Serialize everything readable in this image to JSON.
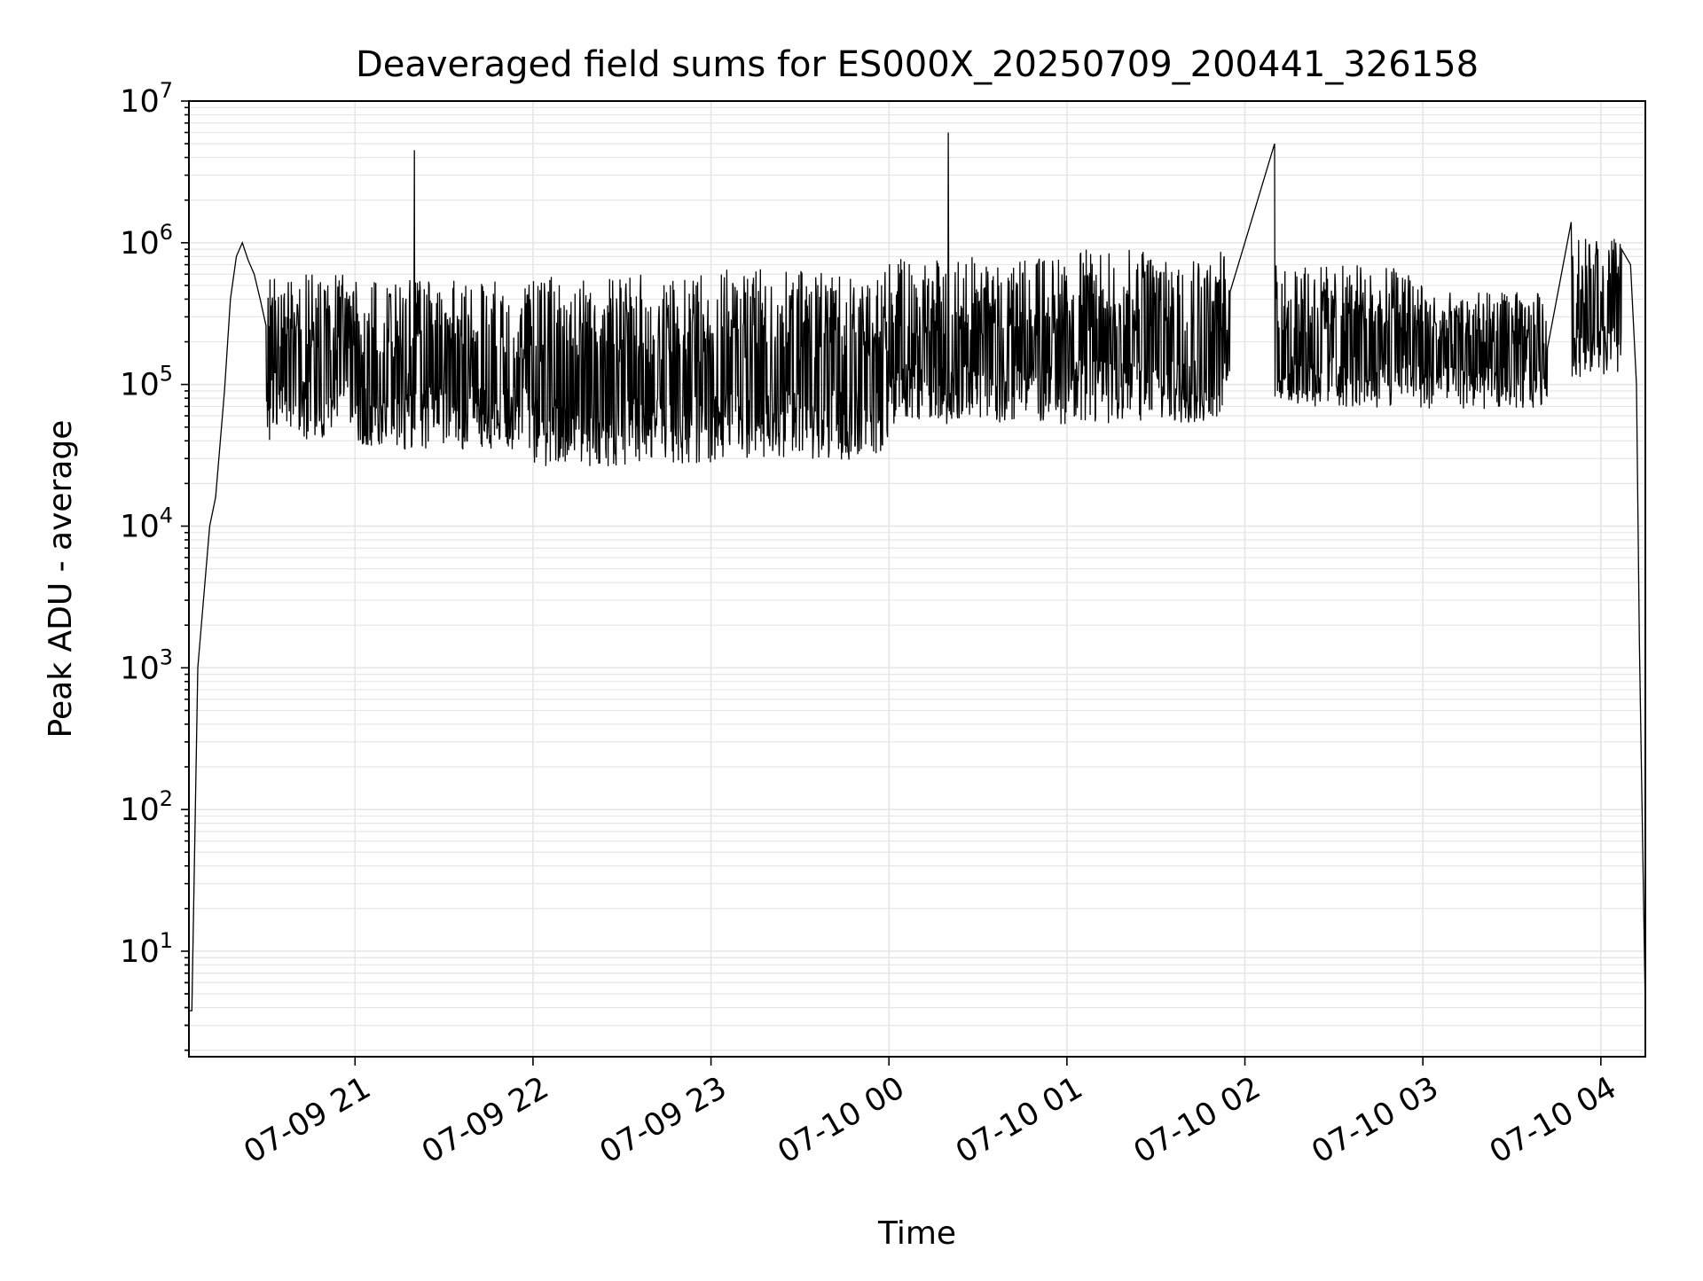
{
  "chart_data": {
    "type": "line",
    "title": "Deaveraged field sums for ES000X_20250709_200441_326158",
    "xlabel": "Time",
    "ylabel": "Peak ADU - average",
    "y_scale": "log",
    "ylim": [
      1.8,
      10000000
    ],
    "xlim": [
      "2025-07-09 20:04",
      "2025-07-10 04:15"
    ],
    "x_tick_labels": [
      "07-09 21",
      "07-09 22",
      "07-09 23",
      "07-10 00",
      "07-10 01",
      "07-10 02",
      "07-10 03",
      "07-10 04"
    ],
    "x_tick_values": [
      "2025-07-09 21:00",
      "2025-07-09 22:00",
      "2025-07-09 23:00",
      "2025-07-10 00:00",
      "2025-07-10 01:00",
      "2025-07-10 02:00",
      "2025-07-10 03:00",
      "2025-07-10 04:00"
    ],
    "y_ticks": [
      {
        "value": 10,
        "base": "10",
        "exp": "1"
      },
      {
        "value": 100,
        "base": "10",
        "exp": "2"
      },
      {
        "value": 1000,
        "base": "10",
        "exp": "3"
      },
      {
        "value": 10000,
        "base": "10",
        "exp": "4"
      },
      {
        "value": 100000,
        "base": "10",
        "exp": "5"
      },
      {
        "value": 1000000,
        "base": "10",
        "exp": "6"
      },
      {
        "value": 10000000,
        "base": "10",
        "exp": "7"
      }
    ],
    "grid": true,
    "line_color": "#000000",
    "grid_color": "#e6e6e6",
    "series": [
      {
        "x": [
          "2025-07-09 20:04",
          "2025-07-09 20:05",
          "2025-07-09 20:07",
          "2025-07-09 20:08",
          "2025-07-09 20:11",
          "2025-07-09 20:13",
          "2025-07-09 20:16",
          "2025-07-09 20:18",
          "2025-07-09 20:20",
          "2025-07-09 20:22",
          "2025-07-09 20:24",
          "2025-07-09 20:26",
          "2025-07-09 20:28",
          "2025-07-09 20:30",
          "2025-07-09 20:33",
          "2025-07-09 20:35",
          "2025-07-09 20:38",
          "2025-07-09 20:40",
          "2025-07-09 20:44",
          "2025-07-09 20:48",
          "2025-07-09 20:52",
          "2025-07-09 21:00",
          "2025-07-09 21:10",
          "2025-07-09 21:18",
          "2025-07-09 21:20",
          "2025-07-09 21:30",
          "2025-07-09 21:41",
          "2025-07-09 22:00",
          "2025-07-09 22:15",
          "2025-07-09 22:30",
          "2025-07-09 23:00",
          "2025-07-09 23:30",
          "2025-07-10 00:00",
          "2025-07-10 00:13",
          "2025-07-10 00:20",
          "2025-07-10 00:30",
          "2025-07-10 01:00",
          "2025-07-10 01:30",
          "2025-07-10 01:55",
          "2025-07-10 02:10",
          "2025-07-10 02:30",
          "2025-07-10 02:50",
          "2025-07-10 03:00",
          "2025-07-10 03:20",
          "2025-07-10 03:35",
          "2025-07-10 03:42",
          "2025-07-10 03:50",
          "2025-07-10 04:00",
          "2025-07-10 04:05",
          "2025-07-10 04:07",
          "2025-07-10 04:10",
          "2025-07-10 04:12",
          "2025-07-10 04:13",
          "2025-07-10 04:15"
        ],
        "y": [
          3.8,
          3.8,
          1000,
          1800,
          10000,
          16000,
          90000,
          400000,
          800000,
          1000000,
          750000,
          600000,
          400000,
          260000,
          120000,
          90000,
          80000,
          70000,
          60000,
          55000,
          50000,
          70000,
          90000,
          120000,
          4500000,
          110000,
          100000,
          75000,
          60000,
          65000,
          75000,
          150000,
          250000,
          500000,
          6000000,
          450000,
          350000,
          300000,
          450000,
          5000000,
          400000,
          350000,
          280000,
          200000,
          150000,
          180000,
          1400000,
          450000,
          1000000,
          900000,
          700000,
          100000,
          1500,
          3.8
        ]
      }
    ],
    "noise": {
      "note": "dense jagged band drawn between low and high envelopes",
      "segments": [
        {
          "from": "2025-07-09 20:30",
          "to": "2025-07-09 21:00",
          "low": 35000,
          "high": 600000
        },
        {
          "from": "2025-07-09 21:00",
          "to": "2025-07-09 22:00",
          "low": 30000,
          "high": 550000
        },
        {
          "from": "2025-07-09 22:00",
          "to": "2025-07-09 23:00",
          "low": 22000,
          "high": 600000
        },
        {
          "from": "2025-07-09 23:00",
          "to": "2025-07-10 00:00",
          "low": 25000,
          "high": 650000
        },
        {
          "from": "2025-07-10 00:00",
          "to": "2025-07-10 01:00",
          "low": 45000,
          "high": 800000
        },
        {
          "from": "2025-07-10 01:00",
          "to": "2025-07-10 02:00",
          "low": 45000,
          "high": 900000
        },
        {
          "from": "2025-07-10 02:00",
          "to": "2025-07-10 03:00",
          "low": 60000,
          "high": 700000
        },
        {
          "from": "2025-07-10 03:00",
          "to": "2025-07-10 03:42",
          "low": 60000,
          "high": 450000
        },
        {
          "from": "2025-07-10 03:50",
          "to": "2025-07-10 04:07",
          "low": 100000,
          "high": 1100000
        }
      ]
    }
  }
}
